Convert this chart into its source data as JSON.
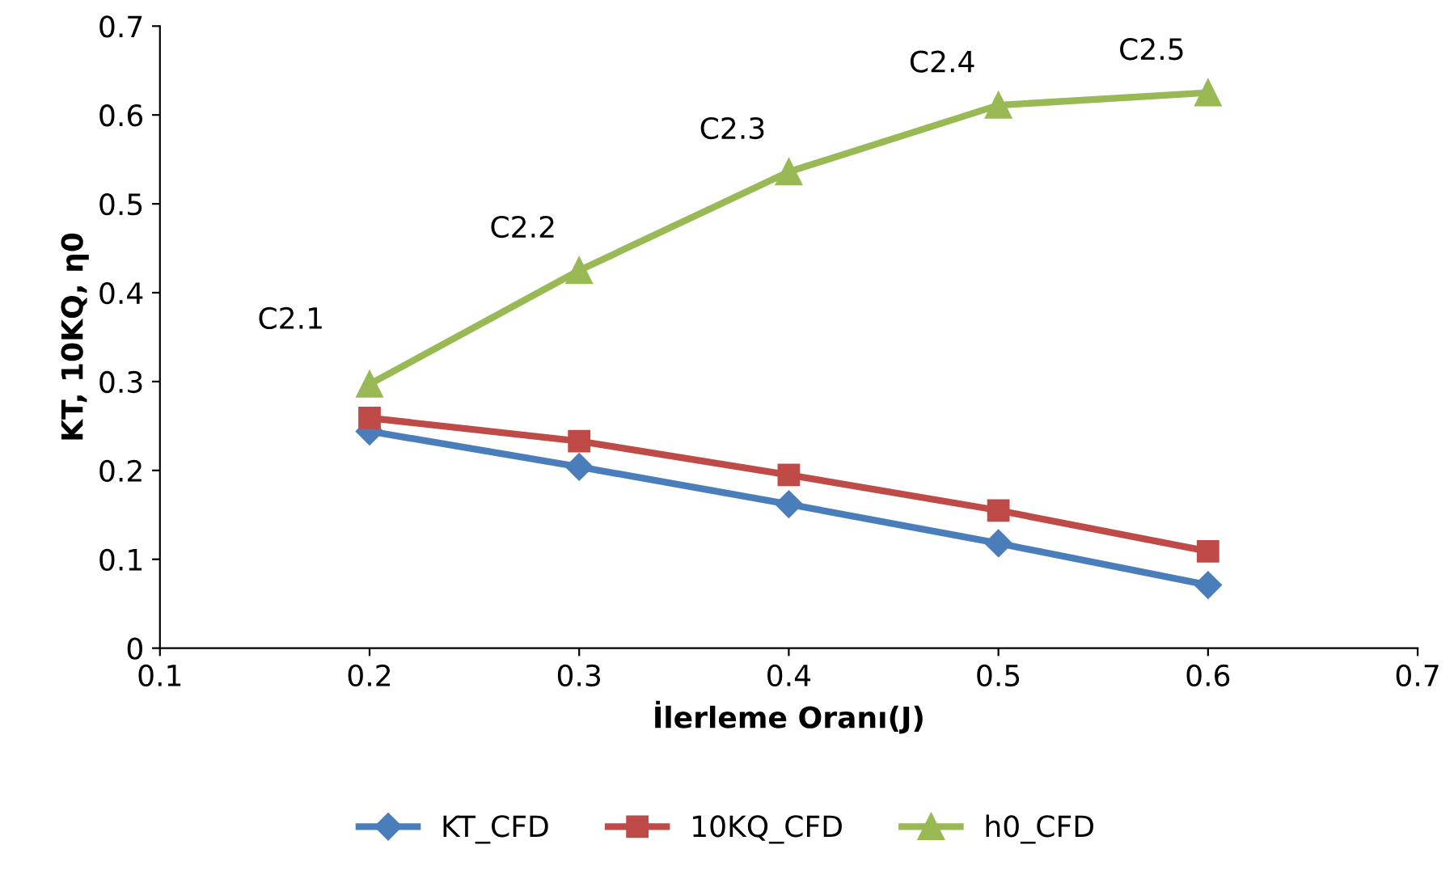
{
  "chart_data": {
    "type": "line",
    "xlabel": "İlerleme Oranı(J)",
    "ylabel": "KT, 10KQ, η0",
    "x": [
      0.2,
      0.3,
      0.4,
      0.5,
      0.6
    ],
    "series": [
      {
        "name": "KT_CFD",
        "color": "#4a7ebb",
        "marker": "diamond",
        "values": [
          0.244,
          0.204,
          0.162,
          0.118,
          0.071
        ]
      },
      {
        "name": "10KQ_CFD",
        "color": "#be4b48",
        "marker": "square",
        "values": [
          0.259,
          0.233,
          0.195,
          0.155,
          0.109
        ]
      },
      {
        "name": "h0_CFD",
        "color": "#98b954",
        "marker": "triangle",
        "values": [
          0.297,
          0.425,
          0.536,
          0.611,
          0.625
        ]
      }
    ],
    "annotations": [
      {
        "text": "C2.1",
        "x": 0.2,
        "y": 0.297
      },
      {
        "text": "C2.2",
        "x": 0.3,
        "y": 0.425
      },
      {
        "text": "C2.3",
        "x": 0.4,
        "y": 0.536
      },
      {
        "text": "C2.4",
        "x": 0.5,
        "y": 0.611
      },
      {
        "text": "C2.5",
        "x": 0.6,
        "y": 0.625
      }
    ],
    "xlim": [
      0.1,
      0.7
    ],
    "xticks": [
      0.1,
      0.2,
      0.3,
      0.4,
      0.5,
      0.6,
      0.7
    ],
    "ylim": [
      0,
      0.7
    ],
    "yticks": [
      0,
      0.1,
      0.2,
      0.3,
      0.4,
      0.5,
      0.6,
      0.7
    ],
    "grid": false,
    "legend": "bottom",
    "line_style": "solid"
  }
}
